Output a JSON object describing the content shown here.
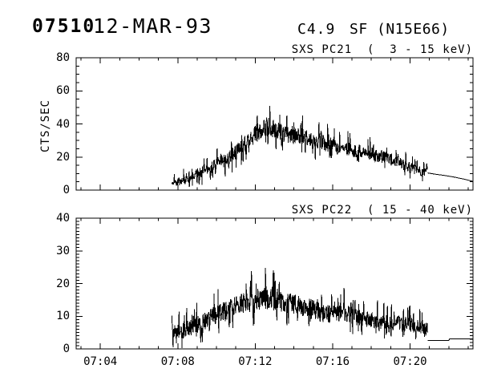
{
  "header": {
    "flare_id": "07510",
    "date": "12-MAR-93",
    "goes_class": "C4.9",
    "flare_label": "SF (N15E66)"
  },
  "colors": {
    "foreground": "#000000",
    "background": "#ffffff"
  },
  "chart_data": [
    {
      "type": "line",
      "title": "SXS PC21  (  3 - 15 keV)",
      "ylabel": "CTS/SEC",
      "ylim": [
        0,
        80
      ],
      "ytick_values": [
        0,
        20,
        40,
        60,
        80
      ],
      "ytick_labels": [
        "0",
        "20",
        "40",
        "60",
        "80"
      ],
      "ytick_minor_step": 5,
      "x_minutes_range": [
        2.75,
        23.25
      ],
      "xtick_minutes": [
        4,
        8,
        12,
        16,
        20
      ],
      "xtick_labels": [
        "07:04",
        "07:08",
        "07:12",
        "07:16",
        "07:20"
      ],
      "xtick_minor_step": 1,
      "grid": false,
      "series": [
        {
          "name": "SXS PC21 counts",
          "noisy_range_minutes": [
            7.7,
            20.9
          ],
          "anchor_minutes": [
            7.7,
            8.1,
            8.6,
            9.0,
            9.5,
            10.0,
            10.6,
            11.1,
            11.6,
            12.0,
            12.3,
            12.6,
            12.9,
            13.2,
            13.6,
            14.0,
            14.4,
            14.8,
            15.2,
            15.5,
            15.8,
            16.2,
            16.6,
            17.0,
            17.5,
            18.0,
            18.4,
            18.9,
            19.4,
            19.9,
            20.3,
            20.6,
            20.9
          ],
          "anchor_mean_cts": [
            4.5,
            5.5,
            7.0,
            9.5,
            12.5,
            15.5,
            19.0,
            24.0,
            29.0,
            33.5,
            36.5,
            38.5,
            37.5,
            35.5,
            33.5,
            32.0,
            33.0,
            30.5,
            28.5,
            30.0,
            27.5,
            26.0,
            25.0,
            24.5,
            23.0,
            21.5,
            21.0,
            19.0,
            16.5,
            14.0,
            12.5,
            11.5,
            11.0
          ],
          "anchor_noise_amp_cts": [
            3.0,
            3.5,
            4.0,
            4.5,
            5.0,
            5.5,
            6.0,
            6.5,
            7.0,
            7.5,
            7.5,
            7.5,
            7.5,
            7.0,
            7.0,
            7.0,
            7.0,
            6.5,
            6.5,
            7.5,
            6.5,
            6.0,
            6.0,
            6.0,
            5.5,
            5.5,
            5.5,
            5.0,
            5.0,
            4.5,
            4.0,
            4.0,
            3.5
          ]
        }
      ],
      "tail_line": {
        "minutes": [
          20.9,
          21.3,
          21.8,
          22.3,
          22.8,
          23.25
        ],
        "cts": [
          10.4,
          9.6,
          8.8,
          7.8,
          6.6,
          5.3
        ]
      }
    },
    {
      "type": "line",
      "title": "SXS PC22  ( 15 - 40 keV)",
      "ylabel": "",
      "ylim": [
        0,
        40
      ],
      "ytick_values": [
        0,
        10,
        20,
        30,
        40
      ],
      "ytick_labels": [
        "0",
        "10",
        "20",
        "30",
        "40"
      ],
      "ytick_minor_step": 1,
      "x_minutes_range": [
        2.75,
        23.25
      ],
      "xtick_minutes": [
        4,
        8,
        12,
        16,
        20
      ],
      "xtick_labels": [
        "07:04",
        "07:08",
        "07:12",
        "07:16",
        "07:20"
      ],
      "xtick_minor_step": 1,
      "grid": false,
      "series": [
        {
          "name": "SXS PC22 counts",
          "noisy_range_minutes": [
            7.7,
            20.9
          ],
          "anchor_minutes": [
            7.7,
            8.2,
            8.7,
            9.2,
            9.7,
            10.2,
            10.7,
            11.2,
            11.7,
            12.1,
            12.5,
            12.9,
            13.3,
            13.7,
            14.1,
            14.5,
            15.0,
            15.5,
            16.0,
            16.5,
            16.9,
            17.4,
            17.9,
            18.4,
            18.9,
            19.4,
            19.9,
            20.3,
            20.6,
            20.9
          ],
          "anchor_mean_cts": [
            5.0,
            5.5,
            6.5,
            8.0,
            9.5,
            11.0,
            12.0,
            13.5,
            14.5,
            15.5,
            16.0,
            15.5,
            15.0,
            14.5,
            13.5,
            13.0,
            12.0,
            11.0,
            10.5,
            11.5,
            10.5,
            9.5,
            9.0,
            8.5,
            8.0,
            8.0,
            7.5,
            7.0,
            6.5,
            6.0
          ],
          "anchor_noise_amp_cts": [
            3.0,
            3.2,
            3.4,
            3.6,
            3.8,
            4.0,
            4.2,
            4.4,
            4.6,
            4.8,
            5.0,
            4.8,
            4.8,
            4.6,
            4.4,
            4.2,
            4.0,
            3.8,
            3.6,
            3.8,
            3.6,
            3.4,
            3.2,
            3.2,
            3.0,
            3.0,
            3.0,
            2.9,
            2.8,
            2.8
          ]
        }
      ],
      "tail_line": {
        "minutes": [
          20.9,
          22.0,
          22.05,
          23.25
        ],
        "cts": [
          2.6,
          2.6,
          3.1,
          3.1
        ]
      }
    }
  ]
}
